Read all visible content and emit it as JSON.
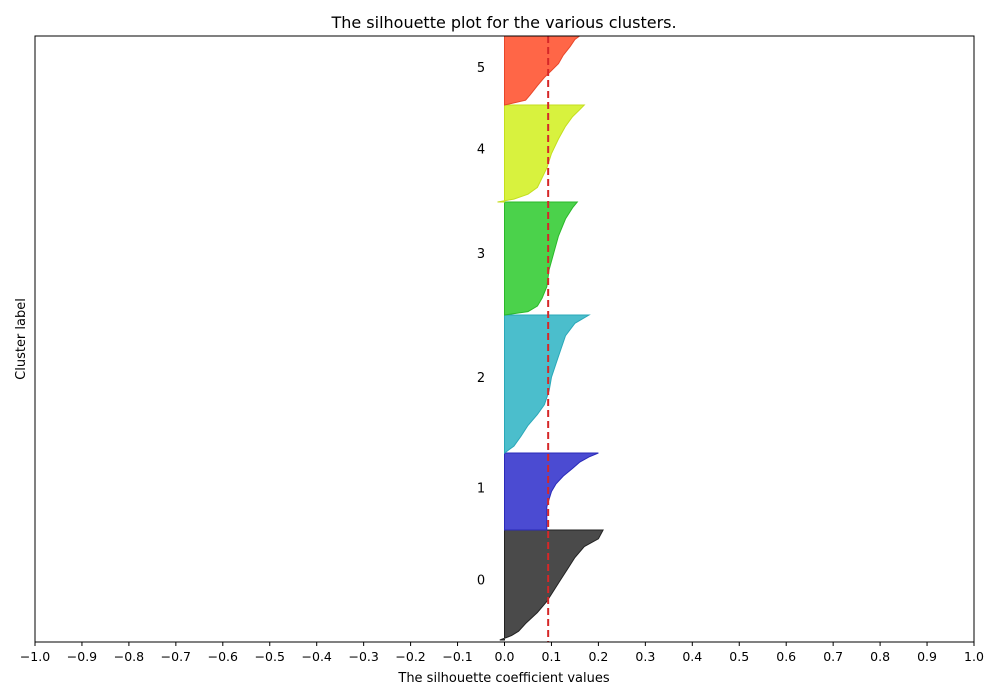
{
  "chart_data": {
    "type": "area",
    "title": "The silhouette plot for the various clusters.",
    "xlabel": "The silhouette coefficient values",
    "ylabel": "Cluster label",
    "xlim": [
      -1.0,
      1.0
    ],
    "x_ticks": [
      "−1.0",
      "−0.9",
      "−0.8",
      "−0.7",
      "−0.6",
      "−0.5",
      "−0.4",
      "−0.3",
      "−0.2",
      "−0.1",
      "0.0",
      "0.1",
      "0.2",
      "0.3",
      "0.4",
      "0.5",
      "0.6",
      "0.7",
      "0.8",
      "0.9",
      "1.0"
    ],
    "average_silhouette_score": 0.093,
    "average_line_color": "#d62728",
    "grid": false,
    "clusters": [
      {
        "label": "0",
        "color": "#4a4a4a",
        "edge": "#222222",
        "profile": [
          [
            0.0,
            0.21
          ],
          [
            0.08,
            0.2
          ],
          [
            0.15,
            0.17
          ],
          [
            0.25,
            0.15
          ],
          [
            0.35,
            0.135
          ],
          [
            0.45,
            0.12
          ],
          [
            0.55,
            0.105
          ],
          [
            0.65,
            0.09
          ],
          [
            0.75,
            0.07
          ],
          [
            0.85,
            0.045
          ],
          [
            0.92,
            0.03
          ],
          [
            0.96,
            0.015
          ],
          [
            1.0,
            -0.01
          ]
        ]
      },
      {
        "label": "1",
        "color": "#4b4bd2",
        "edge": "#2a2ab8",
        "profile": [
          [
            0.0,
            0.2
          ],
          [
            0.05,
            0.18
          ],
          [
            0.12,
            0.16
          ],
          [
            0.2,
            0.145
          ],
          [
            0.3,
            0.125
          ],
          [
            0.4,
            0.11
          ],
          [
            0.5,
            0.1
          ],
          [
            0.6,
            0.095
          ],
          [
            0.7,
            0.09
          ],
          [
            0.8,
            0.09
          ],
          [
            0.9,
            0.09
          ],
          [
            1.0,
            0.09
          ]
        ]
      },
      {
        "label": "2",
        "color": "#4bbecc",
        "edge": "#2aa8b8",
        "profile": [
          [
            0.0,
            0.18
          ],
          [
            0.06,
            0.15
          ],
          [
            0.15,
            0.13
          ],
          [
            0.25,
            0.12
          ],
          [
            0.35,
            0.11
          ],
          [
            0.45,
            0.1
          ],
          [
            0.55,
            0.095
          ],
          [
            0.65,
            0.085
          ],
          [
            0.72,
            0.07
          ],
          [
            0.8,
            0.05
          ],
          [
            0.88,
            0.035
          ],
          [
            0.95,
            0.02
          ],
          [
            1.0,
            0.0
          ]
        ]
      },
      {
        "label": "3",
        "color": "#4bd24b",
        "edge": "#2ab82a",
        "profile": [
          [
            0.0,
            0.155
          ],
          [
            0.05,
            0.145
          ],
          [
            0.15,
            0.13
          ],
          [
            0.3,
            0.115
          ],
          [
            0.45,
            0.105
          ],
          [
            0.6,
            0.095
          ],
          [
            0.75,
            0.09
          ],
          [
            0.85,
            0.08
          ],
          [
            0.92,
            0.07
          ],
          [
            0.97,
            0.05
          ],
          [
            1.0,
            0.0
          ]
        ]
      },
      {
        "label": "4",
        "color": "#d8f23e",
        "edge": "#c4de1e",
        "profile": [
          [
            0.0,
            0.17
          ],
          [
            0.05,
            0.16
          ],
          [
            0.12,
            0.145
          ],
          [
            0.22,
            0.13
          ],
          [
            0.35,
            0.115
          ],
          [
            0.5,
            0.1
          ],
          [
            0.65,
            0.09
          ],
          [
            0.75,
            0.08
          ],
          [
            0.85,
            0.07
          ],
          [
            0.92,
            0.05
          ],
          [
            0.97,
            0.02
          ],
          [
            1.0,
            -0.015
          ]
        ]
      },
      {
        "label": "5",
        "color": "#ff6647",
        "edge": "#e8462a",
        "profile": [
          [
            0.0,
            0.16
          ],
          [
            0.05,
            0.15
          ],
          [
            0.15,
            0.14
          ],
          [
            0.28,
            0.125
          ],
          [
            0.4,
            0.115
          ],
          [
            0.5,
            0.1
          ],
          [
            0.6,
            0.085
          ],
          [
            0.72,
            0.07
          ],
          [
            0.85,
            0.055
          ],
          [
            0.93,
            0.045
          ],
          [
            1.0,
            0.0
          ]
        ]
      }
    ]
  }
}
